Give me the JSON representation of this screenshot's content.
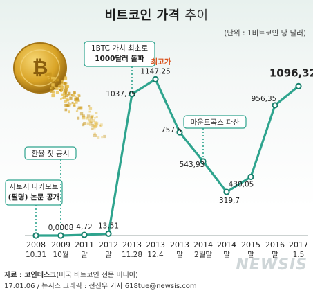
{
  "title": {
    "bold": "비트코인 가격",
    "light": "추이"
  },
  "unit": "(단위 : 1비트코인 당 달러)",
  "source": {
    "line1_bold": "자료 : 코인데스크",
    "line1_rest": "(미국 비트코인 전문 미디어)",
    "line2": "17.01.06 / 뉴시스 그래픽 : 전진우 기자 618tue@newsis.com"
  },
  "watermark": "NEWSIS",
  "colors": {
    "line": "#2ea48e",
    "point": "#17806c",
    "callout_border": "#2ea48e",
    "highlight": "#d9531e",
    "annotation_stem": "#2ea48e"
  },
  "chart_data": {
    "type": "line",
    "title": "비트코인 가격 추이",
    "ylabel": "",
    "xlabel": "",
    "categories": [
      {
        "top": "2008",
        "bottom": "10.31"
      },
      {
        "top": "2009",
        "bottom": "10월"
      },
      {
        "top": "2011",
        "bottom": "말"
      },
      {
        "top": "2012",
        "bottom": "말"
      },
      {
        "top": "2013",
        "bottom": "11.28"
      },
      {
        "top": "2013",
        "bottom": "12.4"
      },
      {
        "top": "2013",
        "bottom": "말"
      },
      {
        "top": "2014",
        "bottom": "2월말"
      },
      {
        "top": "2014",
        "bottom": "말"
      },
      {
        "top": "2015",
        "bottom": "말"
      },
      {
        "top": "2016",
        "bottom": "말"
      },
      {
        "top": "2017",
        "bottom": "1.5"
      }
    ],
    "values": [
      0,
      0.0008,
      4.72,
      13.51,
      1037.75,
      1147.25,
      757.5,
      543.93,
      319.7,
      430.05,
      956.35,
      1096.32
    ],
    "labels": [
      "",
      "0,0008",
      "4,72",
      "13,51",
      "1037,75",
      "1147,25",
      "757,5",
      "543,93",
      "319,7",
      "430,05",
      "956,35",
      "1096,32"
    ],
    "ylim": [
      0,
      1200
    ],
    "peak_label": "최고가",
    "annotations": [
      {
        "index": 0,
        "lines": [
          "사토시 나카모토",
          "(필명) 논문 공개"
        ]
      },
      {
        "index": 1,
        "lines": [
          "환율 첫 공시"
        ]
      },
      {
        "index": 4,
        "lines": [
          "1BTC 가치 최초로",
          "1000달러 돌파"
        ]
      },
      {
        "index": 7,
        "lines": [
          "마운트곡스 파산"
        ]
      }
    ]
  }
}
